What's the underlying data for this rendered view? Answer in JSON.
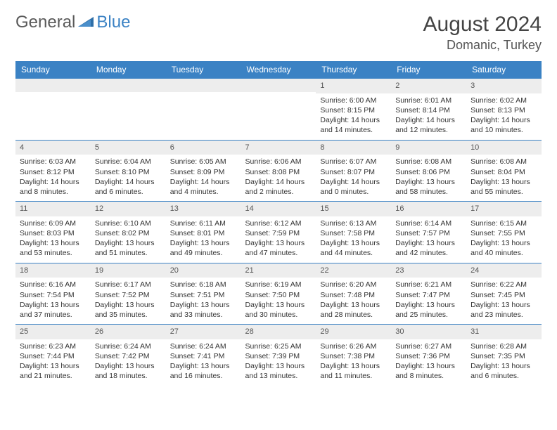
{
  "logo": {
    "text1": "General",
    "text2": "Blue"
  },
  "title": "August 2024",
  "subtitle": "Domanic, Turkey",
  "colors": {
    "header_bg": "#3b82c4",
    "header_text": "#ffffff",
    "daynum_bg": "#ededed",
    "border": "#3b82c4",
    "logo_gray": "#5a5a5a",
    "logo_blue": "#3b82c4"
  },
  "day_headers": [
    "Sunday",
    "Monday",
    "Tuesday",
    "Wednesday",
    "Thursday",
    "Friday",
    "Saturday"
  ],
  "weeks": [
    [
      {
        "n": "",
        "sr": "",
        "ss": "",
        "dl": ""
      },
      {
        "n": "",
        "sr": "",
        "ss": "",
        "dl": ""
      },
      {
        "n": "",
        "sr": "",
        "ss": "",
        "dl": ""
      },
      {
        "n": "",
        "sr": "",
        "ss": "",
        "dl": ""
      },
      {
        "n": "1",
        "sr": "Sunrise: 6:00 AM",
        "ss": "Sunset: 8:15 PM",
        "dl": "Daylight: 14 hours and 14 minutes."
      },
      {
        "n": "2",
        "sr": "Sunrise: 6:01 AM",
        "ss": "Sunset: 8:14 PM",
        "dl": "Daylight: 14 hours and 12 minutes."
      },
      {
        "n": "3",
        "sr": "Sunrise: 6:02 AM",
        "ss": "Sunset: 8:13 PM",
        "dl": "Daylight: 14 hours and 10 minutes."
      }
    ],
    [
      {
        "n": "4",
        "sr": "Sunrise: 6:03 AM",
        "ss": "Sunset: 8:12 PM",
        "dl": "Daylight: 14 hours and 8 minutes."
      },
      {
        "n": "5",
        "sr": "Sunrise: 6:04 AM",
        "ss": "Sunset: 8:10 PM",
        "dl": "Daylight: 14 hours and 6 minutes."
      },
      {
        "n": "6",
        "sr": "Sunrise: 6:05 AM",
        "ss": "Sunset: 8:09 PM",
        "dl": "Daylight: 14 hours and 4 minutes."
      },
      {
        "n": "7",
        "sr": "Sunrise: 6:06 AM",
        "ss": "Sunset: 8:08 PM",
        "dl": "Daylight: 14 hours and 2 minutes."
      },
      {
        "n": "8",
        "sr": "Sunrise: 6:07 AM",
        "ss": "Sunset: 8:07 PM",
        "dl": "Daylight: 14 hours and 0 minutes."
      },
      {
        "n": "9",
        "sr": "Sunrise: 6:08 AM",
        "ss": "Sunset: 8:06 PM",
        "dl": "Daylight: 13 hours and 58 minutes."
      },
      {
        "n": "10",
        "sr": "Sunrise: 6:08 AM",
        "ss": "Sunset: 8:04 PM",
        "dl": "Daylight: 13 hours and 55 minutes."
      }
    ],
    [
      {
        "n": "11",
        "sr": "Sunrise: 6:09 AM",
        "ss": "Sunset: 8:03 PM",
        "dl": "Daylight: 13 hours and 53 minutes."
      },
      {
        "n": "12",
        "sr": "Sunrise: 6:10 AM",
        "ss": "Sunset: 8:02 PM",
        "dl": "Daylight: 13 hours and 51 minutes."
      },
      {
        "n": "13",
        "sr": "Sunrise: 6:11 AM",
        "ss": "Sunset: 8:01 PM",
        "dl": "Daylight: 13 hours and 49 minutes."
      },
      {
        "n": "14",
        "sr": "Sunrise: 6:12 AM",
        "ss": "Sunset: 7:59 PM",
        "dl": "Daylight: 13 hours and 47 minutes."
      },
      {
        "n": "15",
        "sr": "Sunrise: 6:13 AM",
        "ss": "Sunset: 7:58 PM",
        "dl": "Daylight: 13 hours and 44 minutes."
      },
      {
        "n": "16",
        "sr": "Sunrise: 6:14 AM",
        "ss": "Sunset: 7:57 PM",
        "dl": "Daylight: 13 hours and 42 minutes."
      },
      {
        "n": "17",
        "sr": "Sunrise: 6:15 AM",
        "ss": "Sunset: 7:55 PM",
        "dl": "Daylight: 13 hours and 40 minutes."
      }
    ],
    [
      {
        "n": "18",
        "sr": "Sunrise: 6:16 AM",
        "ss": "Sunset: 7:54 PM",
        "dl": "Daylight: 13 hours and 37 minutes."
      },
      {
        "n": "19",
        "sr": "Sunrise: 6:17 AM",
        "ss": "Sunset: 7:52 PM",
        "dl": "Daylight: 13 hours and 35 minutes."
      },
      {
        "n": "20",
        "sr": "Sunrise: 6:18 AM",
        "ss": "Sunset: 7:51 PM",
        "dl": "Daylight: 13 hours and 33 minutes."
      },
      {
        "n": "21",
        "sr": "Sunrise: 6:19 AM",
        "ss": "Sunset: 7:50 PM",
        "dl": "Daylight: 13 hours and 30 minutes."
      },
      {
        "n": "22",
        "sr": "Sunrise: 6:20 AM",
        "ss": "Sunset: 7:48 PM",
        "dl": "Daylight: 13 hours and 28 minutes."
      },
      {
        "n": "23",
        "sr": "Sunrise: 6:21 AM",
        "ss": "Sunset: 7:47 PM",
        "dl": "Daylight: 13 hours and 25 minutes."
      },
      {
        "n": "24",
        "sr": "Sunrise: 6:22 AM",
        "ss": "Sunset: 7:45 PM",
        "dl": "Daylight: 13 hours and 23 minutes."
      }
    ],
    [
      {
        "n": "25",
        "sr": "Sunrise: 6:23 AM",
        "ss": "Sunset: 7:44 PM",
        "dl": "Daylight: 13 hours and 21 minutes."
      },
      {
        "n": "26",
        "sr": "Sunrise: 6:24 AM",
        "ss": "Sunset: 7:42 PM",
        "dl": "Daylight: 13 hours and 18 minutes."
      },
      {
        "n": "27",
        "sr": "Sunrise: 6:24 AM",
        "ss": "Sunset: 7:41 PM",
        "dl": "Daylight: 13 hours and 16 minutes."
      },
      {
        "n": "28",
        "sr": "Sunrise: 6:25 AM",
        "ss": "Sunset: 7:39 PM",
        "dl": "Daylight: 13 hours and 13 minutes."
      },
      {
        "n": "29",
        "sr": "Sunrise: 6:26 AM",
        "ss": "Sunset: 7:38 PM",
        "dl": "Daylight: 13 hours and 11 minutes."
      },
      {
        "n": "30",
        "sr": "Sunrise: 6:27 AM",
        "ss": "Sunset: 7:36 PM",
        "dl": "Daylight: 13 hours and 8 minutes."
      },
      {
        "n": "31",
        "sr": "Sunrise: 6:28 AM",
        "ss": "Sunset: 7:35 PM",
        "dl": "Daylight: 13 hours and 6 minutes."
      }
    ]
  ]
}
